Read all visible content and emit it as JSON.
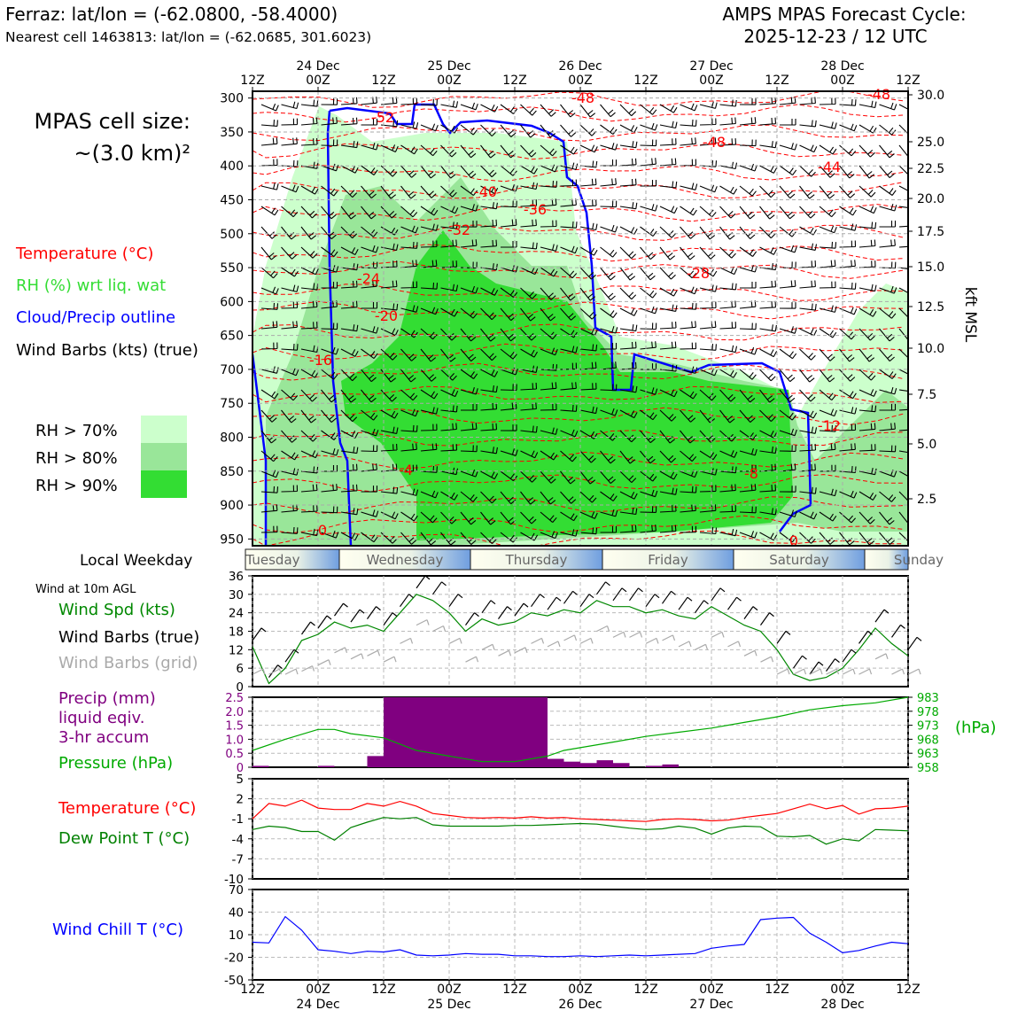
{
  "header": {
    "location": "Ferraz: lat/lon = (-62.0800, -58.4000)",
    "nearest_cell": "Nearest cell 1463813: lat/lon = (-62.0685, 301.6023)",
    "cycle_title": "AMPS MPAS Forecast Cycle:",
    "cycle_time": "2025-12-23 / 12 UTC"
  },
  "side_labels": {
    "cell_size_title": "MPAS cell size:",
    "cell_size_value": "~(3.0 km)²",
    "temperature": "Temperature (°C)",
    "rh": "RH (%) wrt liq. wat",
    "cloud": "Cloud/Precip outline",
    "barbs": "Wind Barbs (kts) (true)",
    "rh70": "RH > 70%",
    "rh80": "RH > 80%",
    "rh90": "RH > 90%",
    "local_weekday": "Local Weekday",
    "wind10m": "Wind at 10m AGL",
    "wind_spd": "Wind Spd (kts)",
    "wind_barbs_true": "Wind Barbs (true)",
    "wind_barbs_grid": "Wind Barbs (grid)",
    "precip1": "Precip (mm)",
    "precip2": "liquid eqiv.",
    "precip3": "3-hr accum",
    "pressure": "Pressure (hPa)",
    "hpa_unit": "(hPa)",
    "temp2": "Temperature (°C)",
    "dewpt": "Dew Point T (°C)",
    "windchill": "Wind Chill T (°C)",
    "kft": "kft MSL"
  },
  "colors": {
    "temperature": "#ff0000",
    "rh": "#22cc22",
    "rh70": "#ccffcc",
    "rh80": "#99e699",
    "rh90": "#33dd33",
    "cloud": "#0000ff",
    "precip": "#800080",
    "pressure": "#00aa00",
    "dewpoint": "#008000",
    "windchill": "#0000ff",
    "grid_barb": "#aaaaaa"
  },
  "chart_data": [
    {
      "type": "time-height cross-section",
      "time_ticks_top": [
        "12Z",
        "00Z",
        "12Z",
        "00Z",
        "12Z",
        "00Z",
        "12Z",
        "00Z",
        "12Z",
        "00Z",
        "12Z"
      ],
      "date_labels_top": [
        "24 Dec",
        "25 Dec",
        "26 Dec",
        "27 Dec",
        "28 Dec"
      ],
      "pressure_ticks": [
        "300",
        "350",
        "400",
        "450",
        "500",
        "550",
        "600",
        "650",
        "700",
        "750",
        "800",
        "850",
        "900",
        "950"
      ],
      "kft_ticks": [
        "30.0",
        "25.0",
        "22.5",
        "20.0",
        "17.5",
        "15.0",
        "12.5",
        "10.0",
        "7.5",
        "5.0",
        "2.5"
      ],
      "temperature_contour_labels": [
        "-52",
        "-48",
        "-48",
        "-48",
        "-44",
        "-40",
        "-36",
        "-32",
        "-28",
        "-24",
        "-20",
        "-16",
        "-12",
        "-8",
        "-4",
        "0",
        "0"
      ],
      "weekdays": [
        "Tuesday",
        "Wednesday",
        "Thursday",
        "Friday",
        "Saturday",
        "Sunday"
      ]
    },
    {
      "type": "line",
      "title": "Wind Spd (kts)",
      "yticks": [
        "36",
        "30",
        "24",
        "18",
        "12",
        "6",
        "0"
      ],
      "ylim": [
        0,
        36
      ],
      "x_hours": [
        0,
        3,
        6,
        9,
        12,
        15,
        18,
        21,
        24,
        27,
        30,
        33,
        36,
        39,
        42,
        45,
        48,
        51,
        54,
        57,
        60,
        63,
        66,
        69,
        72,
        75,
        78,
        81,
        84,
        87,
        90,
        93,
        96,
        99,
        102,
        105,
        108,
        111,
        114,
        117,
        120
      ],
      "values": [
        13,
        1,
        6,
        15,
        17,
        21,
        19,
        20,
        18,
        24,
        30,
        28,
        24,
        18,
        22,
        20,
        21,
        24,
        23,
        25,
        24,
        28,
        26,
        26,
        24,
        25,
        23,
        22,
        26,
        23,
        20,
        18,
        12,
        4,
        2,
        3,
        6,
        12,
        19,
        14,
        10
      ]
    },
    {
      "type": "bar+line",
      "title": "Precip (mm) / Pressure (hPa)",
      "precip_yticks": [
        "2.5",
        "2.0",
        "1.5",
        "1.0",
        "0.5",
        "0"
      ],
      "pressure_yticks": [
        "983",
        "978",
        "973",
        "968",
        "963",
        "958"
      ],
      "precip_ylim": [
        0,
        2.5
      ],
      "pressure_ylim": [
        958,
        983
      ],
      "precip_bins_hours": [
        0,
        3,
        6,
        9,
        12,
        15,
        18,
        21,
        24,
        27,
        30,
        33,
        36,
        39,
        42,
        45,
        48,
        51,
        54,
        57,
        60,
        63,
        66,
        69,
        72,
        75,
        78,
        81,
        84,
        87,
        90,
        93,
        96,
        99,
        102,
        105,
        108,
        111,
        114,
        117
      ],
      "precip_values": [
        0.05,
        0,
        0,
        0,
        0.05,
        0,
        0,
        0.4,
        2.5,
        2.5,
        2.5,
        2.5,
        2.5,
        2.5,
        2.5,
        2.5,
        2.5,
        2.5,
        0.3,
        0.2,
        0.15,
        0.25,
        0.15,
        0,
        0.05,
        0.1,
        0,
        0,
        0,
        0,
        0,
        0,
        0,
        0,
        0,
        0,
        0,
        0,
        0,
        0
      ],
      "pressure_hours": [
        0,
        6,
        12,
        15,
        18,
        24,
        30,
        36,
        42,
        48,
        54,
        57,
        60,
        66,
        72,
        78,
        84,
        90,
        96,
        102,
        108,
        114,
        120
      ],
      "pressure_values": [
        964,
        968,
        971.5,
        971.5,
        970,
        968.5,
        964,
        962,
        960,
        960,
        962,
        964,
        965,
        967,
        969,
        970.5,
        972,
        974,
        976,
        978.5,
        980,
        981,
        983
      ]
    },
    {
      "type": "line",
      "title": "Temperature / Dew Point (°C)",
      "yticks": [
        "5",
        "2",
        "-1",
        "-4",
        "-7",
        "-10"
      ],
      "ylim": [
        -10,
        5
      ],
      "x_hours": [
        0,
        3,
        6,
        9,
        12,
        15,
        18,
        21,
        24,
        27,
        30,
        33,
        36,
        39,
        42,
        45,
        48,
        51,
        54,
        57,
        60,
        63,
        66,
        69,
        72,
        75,
        78,
        81,
        84,
        87,
        90,
        93,
        96,
        99,
        102,
        105,
        108,
        111,
        114,
        117,
        120
      ],
      "temperature": [
        -1,
        1.3,
        0.9,
        1.8,
        0.6,
        0.4,
        0.4,
        1.3,
        0.9,
        1.6,
        0.9,
        -0.2,
        -0.5,
        -0.8,
        -0.9,
        -0.8,
        -0.9,
        -0.7,
        -0.9,
        -0.8,
        -1,
        -1.1,
        -1.2,
        -1.3,
        -1.4,
        -1.1,
        -1,
        -1.1,
        -1.3,
        -1.2,
        -0.8,
        -0.5,
        -0.2,
        0.5,
        1.2,
        0.5,
        1,
        -0.3,
        0.5,
        0.6,
        0.9
      ],
      "dewpoint": [
        -2.6,
        -2.1,
        -2.3,
        -2.9,
        -2.9,
        -4.2,
        -2.3,
        -1.5,
        -0.8,
        -1,
        -0.8,
        -1.9,
        -2.1,
        -2.1,
        -2.1,
        -2.1,
        -2,
        -2,
        -1.9,
        -1.8,
        -1.7,
        -1.8,
        -2.1,
        -2.4,
        -2.6,
        -2.5,
        -2.1,
        -2.4,
        -3.3,
        -2.4,
        -2.1,
        -2.2,
        -3.6,
        -3.7,
        -3.5,
        -4.8,
        -4,
        -4.3,
        -2.6,
        -2.7,
        -2.8
      ]
    },
    {
      "type": "line",
      "title": "Wind Chill T (°C)",
      "yticks": [
        "70",
        "40",
        "10",
        "-20",
        "-50"
      ],
      "ylim": [
        -50,
        70
      ],
      "x_hours": [
        0,
        3,
        6,
        9,
        12,
        15,
        18,
        21,
        24,
        27,
        30,
        33,
        36,
        39,
        42,
        45,
        48,
        51,
        54,
        57,
        60,
        63,
        66,
        69,
        72,
        75,
        78,
        81,
        84,
        87,
        90,
        93,
        96,
        99,
        102,
        105,
        108,
        111,
        114,
        117,
        120
      ],
      "values": [
        0,
        -1,
        34,
        16,
        -10,
        -12,
        -15,
        -12,
        -13,
        -10,
        -17,
        -18,
        -17,
        -15,
        -16,
        -16,
        -18,
        -18,
        -19,
        -19,
        -18,
        -19,
        -18,
        -17,
        -18,
        -17,
        -16,
        -15,
        -8,
        -5,
        -3,
        30,
        32,
        33,
        12,
        0,
        -14,
        -11,
        -5,
        0,
        -2
      ]
    },
    {
      "type": "axis",
      "time_ticks_bottom": [
        "12Z",
        "00Z",
        "12Z",
        "00Z",
        "12Z",
        "00Z",
        "12Z",
        "00Z",
        "12Z",
        "00Z",
        "12Z"
      ],
      "date_labels_bottom": [
        "24 Dec",
        "25 Dec",
        "26 Dec",
        "27 Dec",
        "28 Dec"
      ]
    }
  ]
}
